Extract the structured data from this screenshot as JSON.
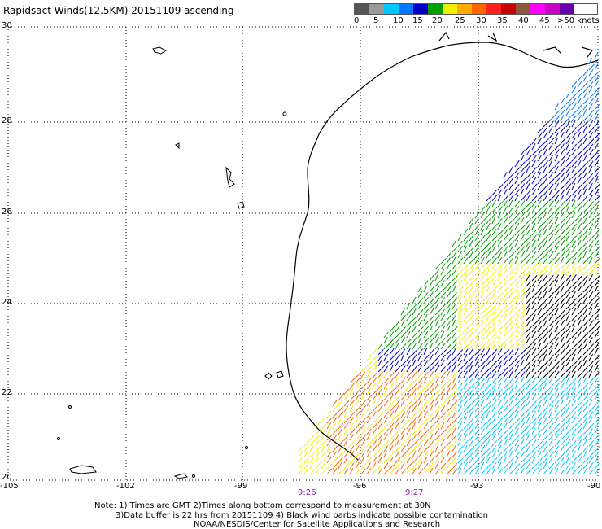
{
  "title": "Rapidsact Winds(12.5KM) 20151109 ascending",
  "legend": {
    "labels": [
      "0",
      "5",
      "10",
      "15",
      "20",
      "25",
      "30",
      "35",
      "40",
      "45",
      ">50 knots"
    ],
    "colors": [
      "#555555",
      "#9a9a9a",
      "#00c8ff",
      "#0078ff",
      "#0000c8",
      "#00a000",
      "#f0f000",
      "#ffaa00",
      "#ff6600",
      "#ff2020",
      "#c80000",
      "#8b5a3c",
      "#ff00ff",
      "#c800c8",
      "#6a00a8"
    ]
  },
  "map": {
    "lat_labels": [
      "30",
      "28",
      "26",
      "24",
      "22",
      "20"
    ],
    "lon_labels": [
      "-105",
      "-102",
      "-99",
      "-96",
      "-93",
      "-90"
    ],
    "time_labels": [
      "9:26",
      "9:27"
    ],
    "grid": "dotted"
  },
  "notes": [
    "Note: 1) Times are GMT 2)Times along bottom correspond to measurement at 30N",
    "3)Data buffer is 22 hrs from 20151109 4) Black wind barbs indicate possible contamination",
    "NOAA/NESDIS/Center for Satellite Applications and Research"
  ]
}
